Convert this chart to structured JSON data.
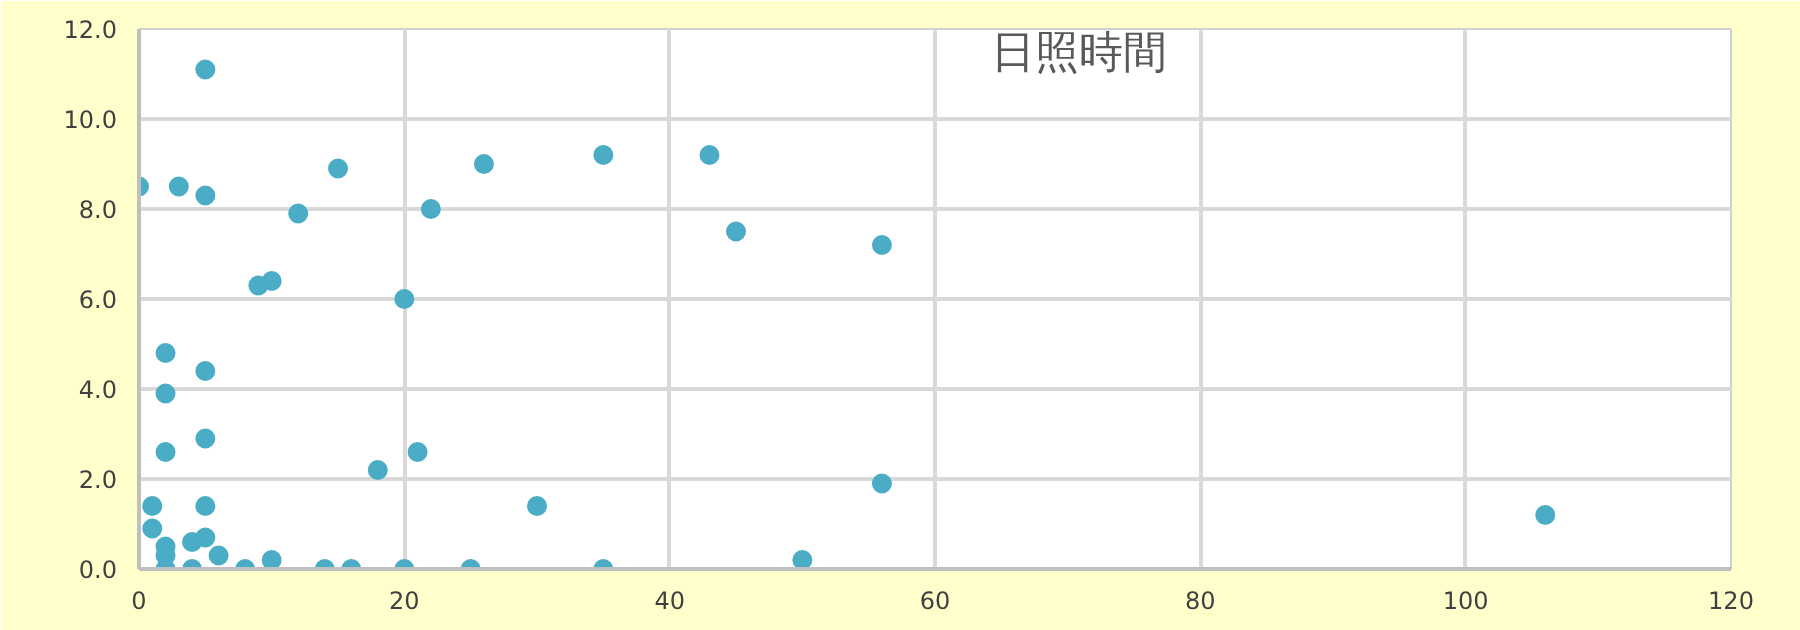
{
  "chart_data": {
    "type": "scatter",
    "title": "日照時間",
    "color": "#4bacc6",
    "marker": "circle",
    "grid": true,
    "x": [
      5,
      0,
      3,
      5,
      12,
      9,
      10,
      15,
      20,
      22,
      26,
      35,
      43,
      45,
      56,
      2,
      2,
      5,
      2,
      5,
      18,
      21,
      30,
      56,
      1,
      5,
      1,
      2,
      2,
      2,
      4,
      5,
      6,
      4,
      8,
      10,
      14,
      16,
      20,
      25,
      35,
      50,
      106
    ],
    "values": [
      11.1,
      8.5,
      8.5,
      8.3,
      7.9,
      6.3,
      6.4,
      8.9,
      6.0,
      8.0,
      9.0,
      9.2,
      9.2,
      7.5,
      7.2,
      4.8,
      3.9,
      4.4,
      2.6,
      2.9,
      2.2,
      2.6,
      1.4,
      1.9,
      1.4,
      1.4,
      0.9,
      0.5,
      0.3,
      0,
      0.6,
      0.7,
      0.3,
      0,
      0,
      0.2,
      0,
      0,
      0,
      0,
      0,
      0.2,
      1.2
    ],
    "xlim": [
      0,
      120
    ],
    "xticks": [
      0,
      20,
      40,
      60,
      80,
      100,
      120
    ],
    "ylim": [
      0,
      12
    ],
    "yticks": [
      {
        "value": 0,
        "label": "0.0"
      },
      {
        "value": 2,
        "label": "2.0"
      },
      {
        "value": 4,
        "label": "4.0"
      },
      {
        "value": 6,
        "label": "6.0"
      },
      {
        "value": 8,
        "label": "8.0"
      },
      {
        "value": 10,
        "label": "10.0"
      },
      {
        "value": 12,
        "label": "12.0"
      }
    ]
  }
}
